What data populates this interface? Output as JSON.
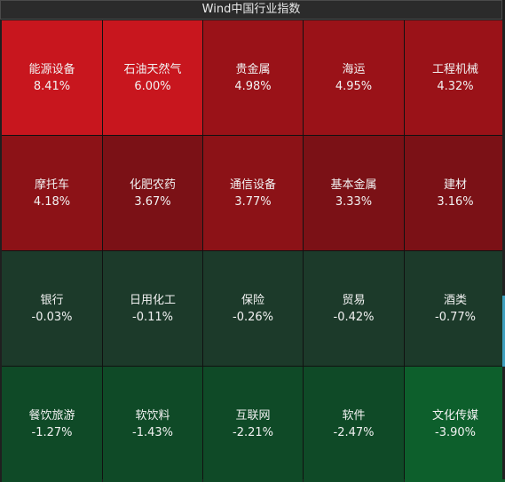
{
  "title": "Wind中国行业指数",
  "tiles": [
    {
      "name": "能源设备",
      "pct": "8.41%",
      "color": "#c8161e"
    },
    {
      "name": "石油天然气",
      "pct": "6.00%",
      "color": "#c8161e"
    },
    {
      "name": "贵金属",
      "pct": "4.98%",
      "color": "#9a1218"
    },
    {
      "name": "海运",
      "pct": "4.95%",
      "color": "#9a1218"
    },
    {
      "name": "工程机械",
      "pct": "4.32%",
      "color": "#9a1218"
    },
    {
      "name": "摩托车",
      "pct": "4.18%",
      "color": "#8c1217"
    },
    {
      "name": "化肥农药",
      "pct": "3.67%",
      "color": "#7b1116"
    },
    {
      "name": "通信设备",
      "pct": "3.77%",
      "color": "#8c1217"
    },
    {
      "name": "基本金属",
      "pct": "3.33%",
      "color": "#7b1116"
    },
    {
      "name": "建材",
      "pct": "3.16%",
      "color": "#7b1116"
    },
    {
      "name": "银行",
      "pct": "-0.03%",
      "color": "#1c3a2a"
    },
    {
      "name": "日用化工",
      "pct": "-0.11%",
      "color": "#1c3a2a"
    },
    {
      "name": "保险",
      "pct": "-0.26%",
      "color": "#1c3a2a"
    },
    {
      "name": "贸易",
      "pct": "-0.42%",
      "color": "#1c3a2a"
    },
    {
      "name": "酒类",
      "pct": "-0.77%",
      "color": "#1c3a2a"
    },
    {
      "name": "餐饮旅游",
      "pct": "-1.27%",
      "color": "#0f4a27"
    },
    {
      "name": "软饮料",
      "pct": "-1.43%",
      "color": "#0f4a27"
    },
    {
      "name": "互联网",
      "pct": "-2.21%",
      "color": "#0f4a27"
    },
    {
      "name": "软件",
      "pct": "-2.47%",
      "color": "#0f4a27"
    },
    {
      "name": "文化传媒",
      "pct": "-3.90%",
      "color": "#0d5f2c"
    }
  ]
}
